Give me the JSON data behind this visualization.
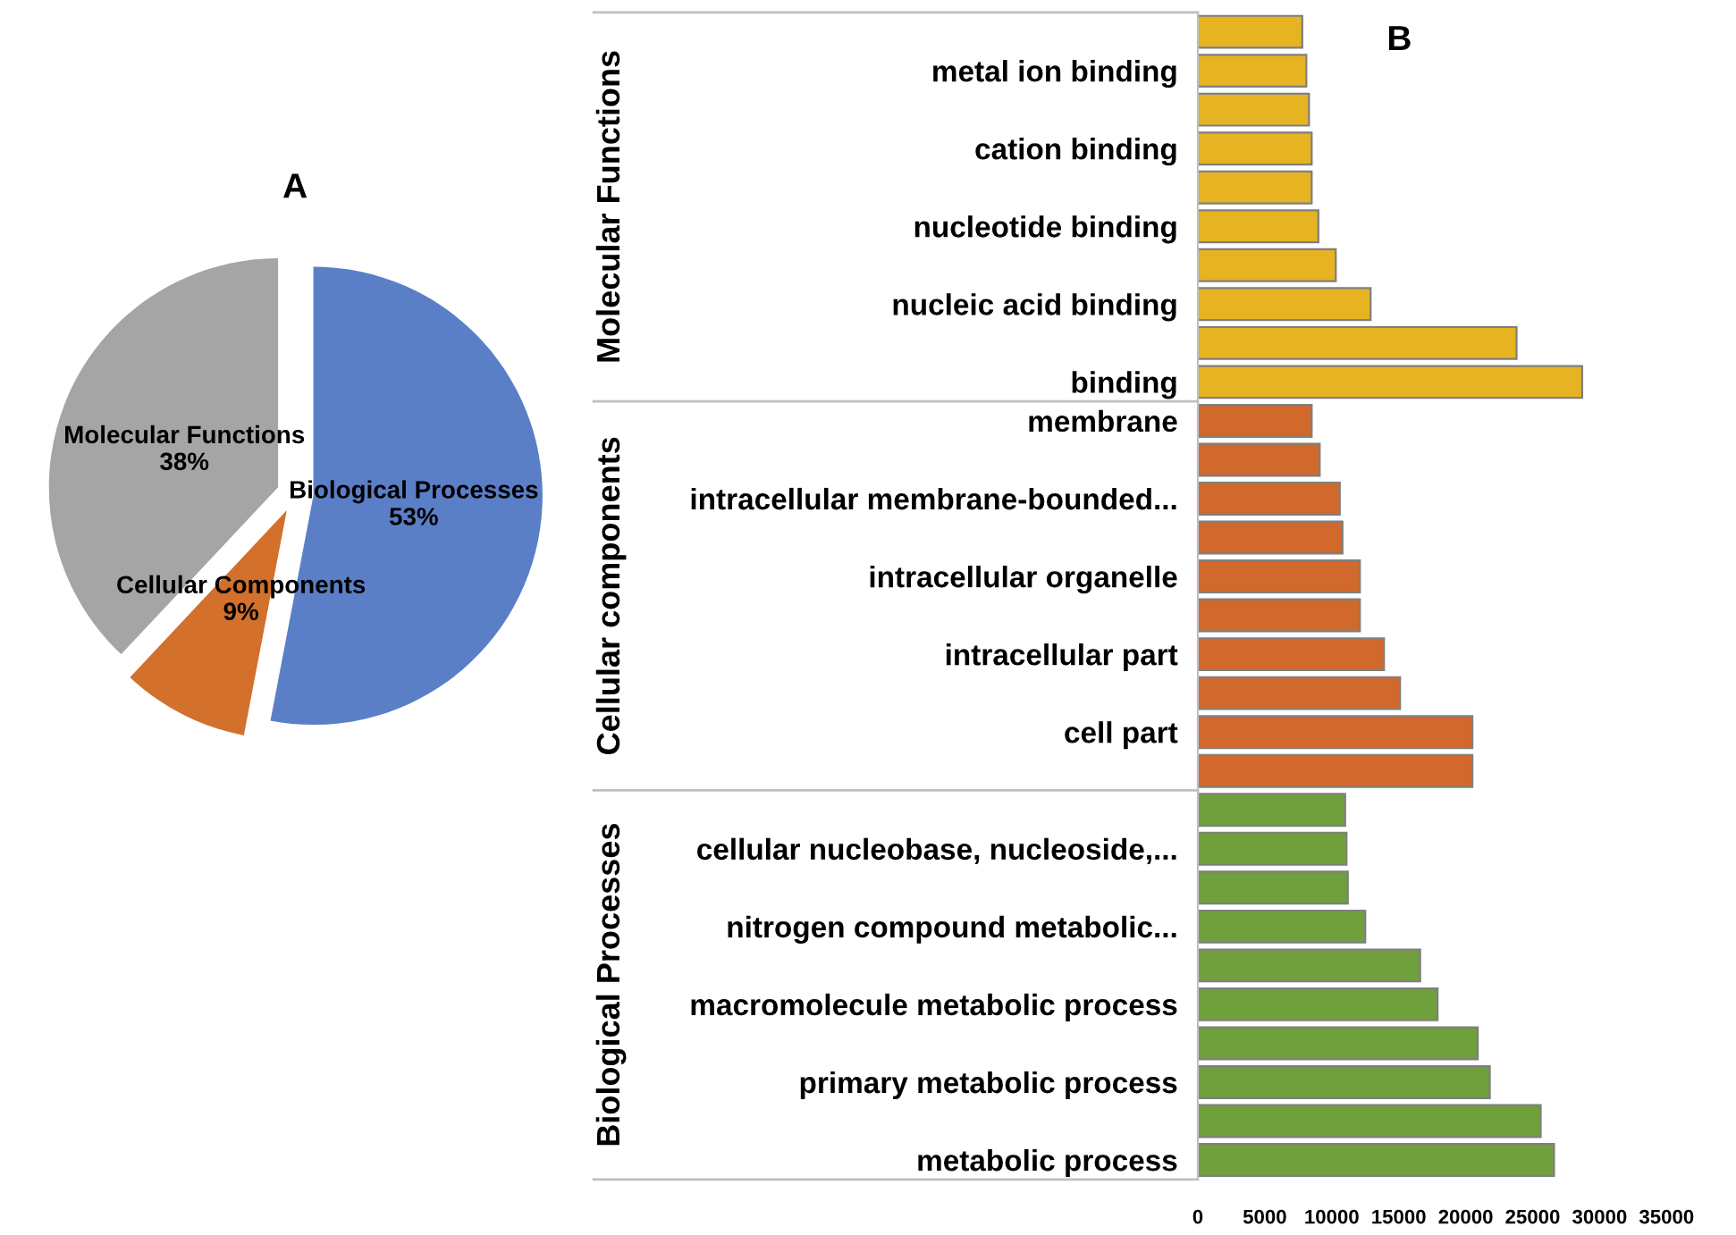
{
  "chart_data": [
    {
      "type": "pie",
      "title": "A",
      "categories": [
        "Biological Processes",
        "Cellular Components",
        "Molecular Functions"
      ],
      "values": [
        53,
        9,
        38
      ],
      "colors": [
        "#5b7fc7",
        "#d2702c",
        "#a5a5a5"
      ],
      "value_labels": [
        "53%",
        "9%",
        "38%"
      ]
    },
    {
      "type": "bar",
      "orientation": "horizontal",
      "title": "B",
      "categories": [
        null,
        "metal ion binding",
        null,
        "cation binding",
        null,
        "nucleotide binding",
        null,
        "nucleic acid binding",
        null,
        "binding",
        "membrane",
        null,
        "intracellular membrane-bounded...",
        null,
        "intracellular organelle",
        null,
        "intracellular part",
        null,
        "cell part",
        null,
        null,
        "cellular nucleobase, nucleoside,...",
        null,
        "nitrogen compound metabolic...",
        null,
        "macromolecule metabolic process",
        null,
        "primary metabolic process",
        null,
        "metabolic process"
      ],
      "series": [
        {
          "name": "Molecular Functions",
          "color": "#e6b422",
          "values": [
            7800,
            8100,
            8300,
            8500,
            8500,
            9000,
            10300,
            12900,
            23800,
            28700,
            null,
            null,
            null,
            null,
            null,
            null,
            null,
            null,
            null,
            null,
            null,
            null,
            null,
            null,
            null,
            null,
            null,
            null,
            null,
            null
          ]
        },
        {
          "name": "Cellular components",
          "color": "#d2692c",
          "values": [
            null,
            null,
            null,
            null,
            null,
            null,
            null,
            null,
            null,
            null,
            8500,
            9100,
            10600,
            10800,
            12100,
            12100,
            13900,
            15100,
            20500,
            20500,
            null,
            null,
            null,
            null,
            null,
            null,
            null,
            null,
            null,
            null
          ]
        },
        {
          "name": "Biological Processes",
          "color": "#70a03c",
          "values": [
            null,
            null,
            null,
            null,
            null,
            null,
            null,
            null,
            null,
            null,
            null,
            null,
            null,
            null,
            null,
            null,
            null,
            null,
            null,
            null,
            11000,
            11100,
            11200,
            12500,
            16600,
            17900,
            20900,
            21800,
            25600,
            26600
          ]
        }
      ],
      "xlim": [
        0,
        35000
      ],
      "xticks": [
        0,
        5000,
        10000,
        15000,
        20000,
        25000,
        30000,
        35000
      ]
    }
  ]
}
